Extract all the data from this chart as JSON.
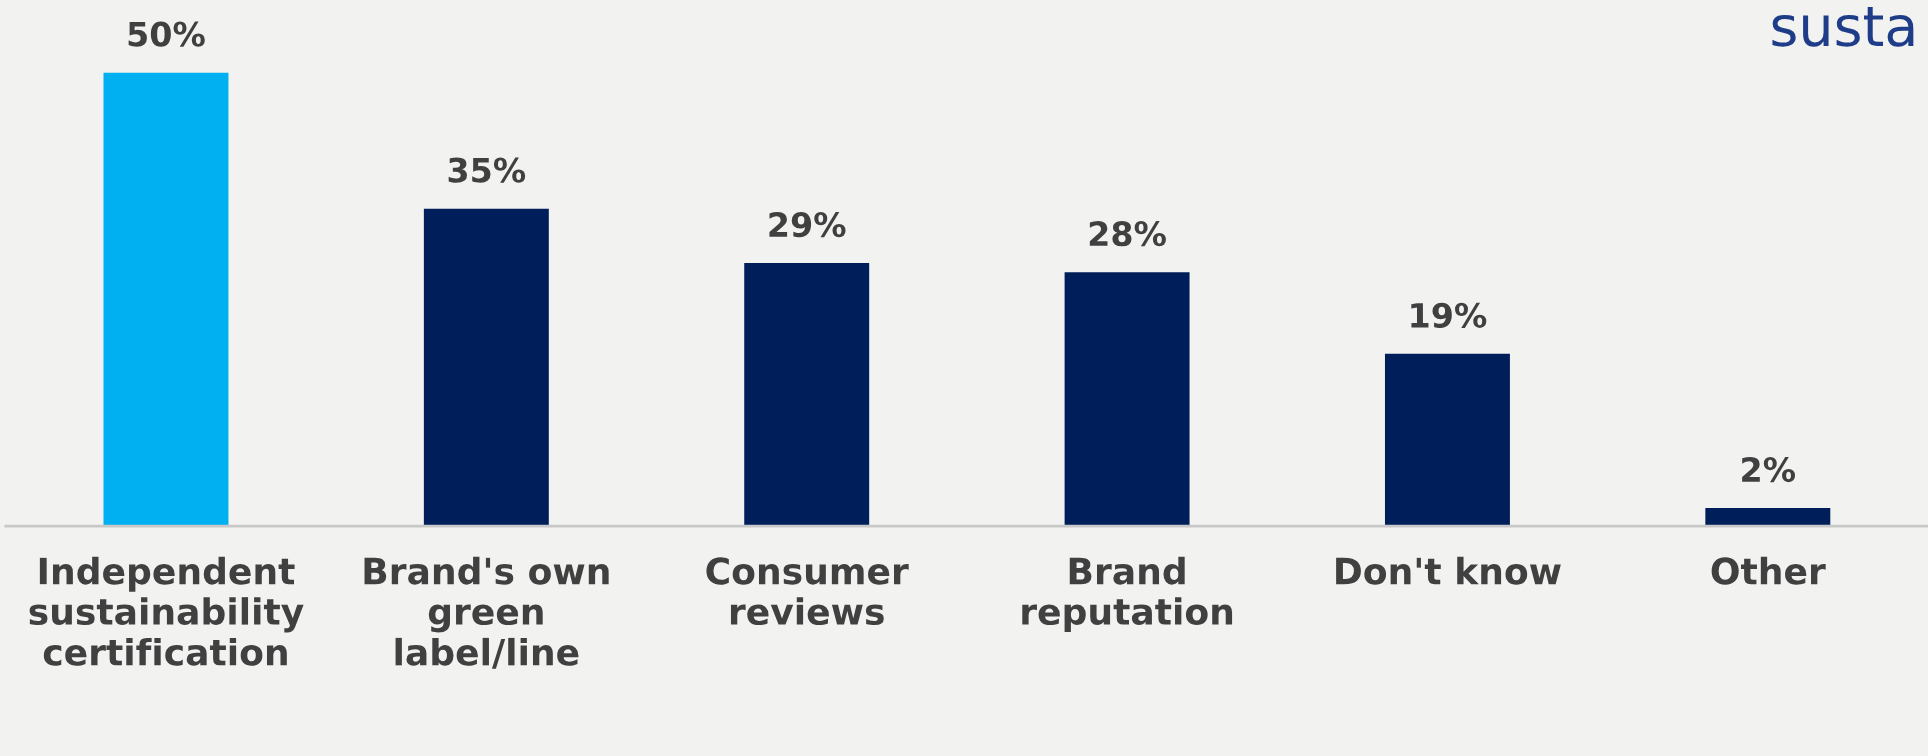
{
  "chart_data": {
    "type": "bar",
    "categories": [
      "Independent\nsustainability\ncertification",
      "Brand's own\ngreen\nlabel/line",
      "Consumer\nreviews",
      "Brand\nreputation",
      "Don't know",
      "Other"
    ],
    "values": [
      50,
      35,
      29,
      28,
      19,
      2
    ],
    "colors": [
      "#00b0f0",
      "#001e5a",
      "#001e5a",
      "#001e5a",
      "#001e5a",
      "#001e5a"
    ],
    "value_labels": [
      "50%",
      "35%",
      "29%",
      "28%",
      "19%",
      "2%"
    ],
    "annotations": [
      "susta"
    ]
  }
}
